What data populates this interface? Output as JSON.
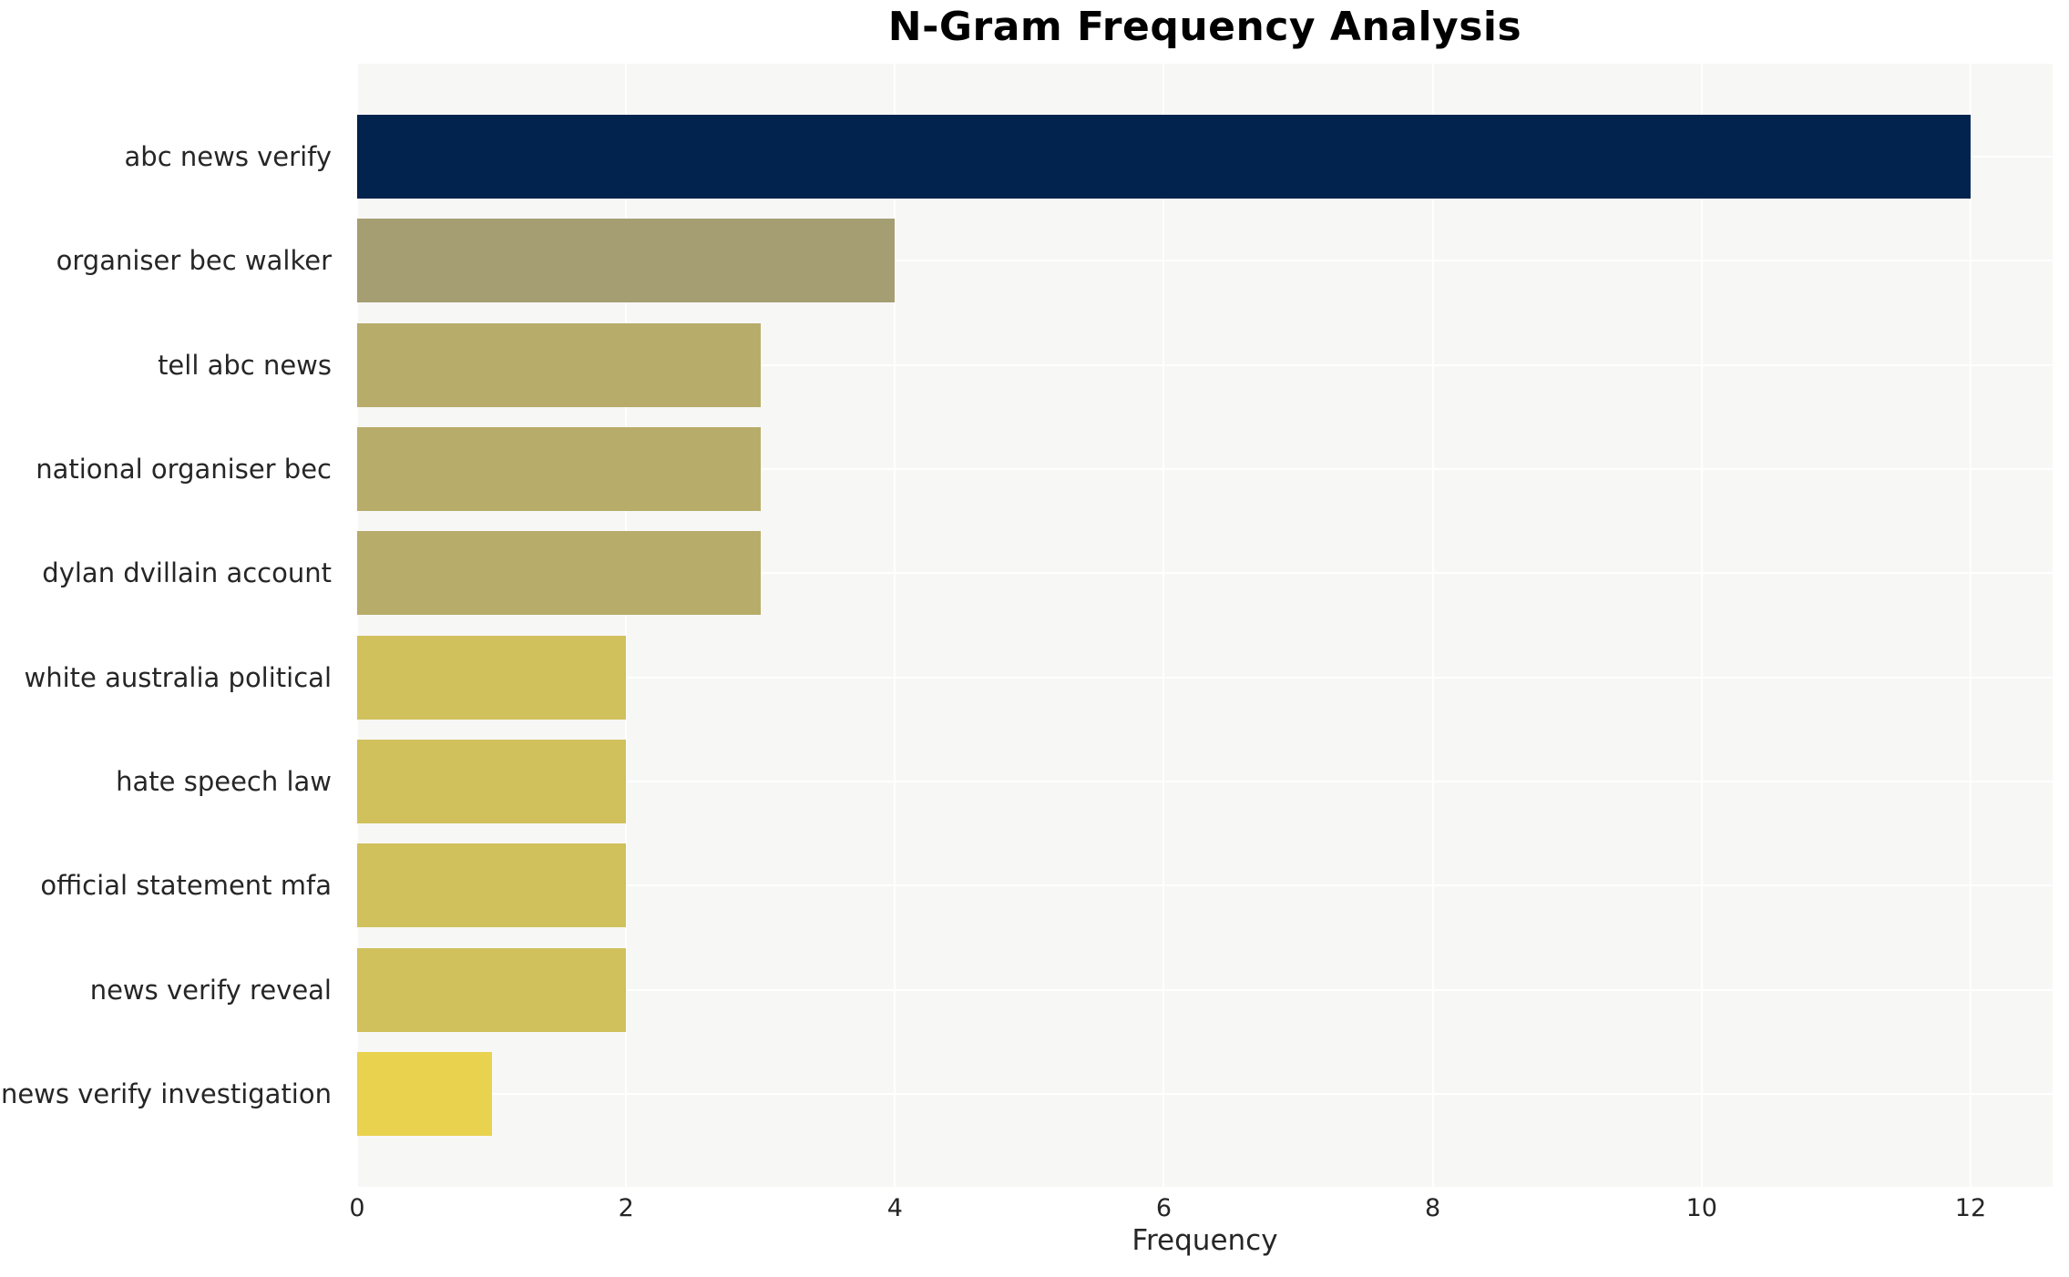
{
  "title": "N-Gram Frequency Analysis",
  "chart_data": {
    "type": "bar",
    "orientation": "horizontal",
    "title": "N-Gram Frequency Analysis",
    "xlabel": "Frequency",
    "ylabel": "",
    "categories": [
      "abc news verify",
      "organiser bec walker",
      "tell abc news",
      "national organiser bec",
      "dylan dvillain account",
      "white australia political",
      "hate speech law",
      "official statement mfa",
      "news verify reveal",
      "news verify investigation"
    ],
    "values": [
      12,
      4,
      3,
      3,
      3,
      2,
      2,
      2,
      2,
      1
    ],
    "bar_colors": [
      "#02234d",
      "#a59e72",
      "#b7ac6a",
      "#b7ac6a",
      "#b7ac6a",
      "#d0c15c",
      "#d0c15c",
      "#d0c15c",
      "#d0c15c",
      "#e8d24e"
    ],
    "x_ticks": [
      0,
      2,
      4,
      6,
      8,
      10,
      12
    ],
    "xlim": [
      0,
      12.61
    ],
    "grid": true,
    "legend": "none",
    "plot_background": "#f7f7f6",
    "figure_background": "#ffffff",
    "grid_color": "#ffffff",
    "text_color": "#262626",
    "title_color": "#000000",
    "bar_fraction": 0.8
  }
}
